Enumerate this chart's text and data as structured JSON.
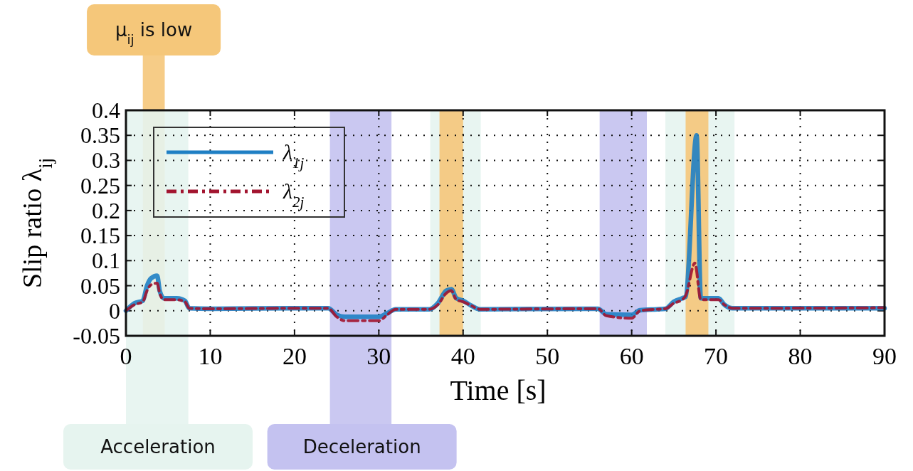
{
  "chart_data": {
    "type": "line",
    "xlabel": "Time [s]",
    "ylabel": "Slip ratio λ$_{ij}$",
    "xlim": [
      0,
      90
    ],
    "xticks": [
      0,
      10,
      20,
      30,
      40,
      50,
      60,
      70,
      80,
      90
    ],
    "ylim": [
      -0.05,
      0.4
    ],
    "yticks": [
      -0.05,
      0,
      0.05,
      0.1,
      0.15,
      0.2,
      0.25,
      0.3,
      0.35,
      0.4
    ],
    "grid": true,
    "legend": "top left",
    "series": [
      {
        "name": "λ$_{1j}$",
        "color": "#1f7fc4",
        "line_style": "solid",
        "x": [
          0,
          1,
          2,
          2.5,
          3,
          3.7,
          4,
          4.5,
          6,
          7,
          7.5,
          10,
          20,
          24,
          25,
          26,
          30,
          31,
          32,
          36,
          37,
          38,
          38.6,
          39.2,
          40,
          41,
          42,
          55,
          56,
          57,
          60,
          61,
          63,
          64,
          65,
          66,
          66.4,
          67.7,
          68.2,
          69,
          70.3,
          71,
          72,
          90
        ],
        "values": [
          0,
          0.015,
          0.02,
          0.05,
          0.065,
          0.07,
          0.04,
          0.025,
          0.025,
          0.02,
          0.005,
          0.004,
          0.005,
          0.005,
          -0.008,
          -0.012,
          -0.012,
          -0.005,
          0.003,
          0.003,
          0.015,
          0.04,
          0.043,
          0.025,
          0.02,
          0.01,
          0.003,
          0.004,
          0.004,
          -0.007,
          -0.008,
          0.001,
          0.003,
          0.004,
          0.018,
          0.025,
          0.028,
          0.35,
          0.025,
          0.025,
          0.025,
          0.012,
          0.005,
          0.005
        ]
      },
      {
        "name": "λ$_{2j}$",
        "color": "#a2142f",
        "line_style": "dashed",
        "x": [
          0,
          1,
          2,
          2.5,
          3,
          3.7,
          4,
          4.5,
          6,
          7,
          7.5,
          10,
          20,
          24,
          25,
          26,
          30,
          31,
          32,
          36,
          37,
          38,
          38.6,
          39.2,
          40,
          41,
          42,
          55,
          56,
          57,
          60,
          61,
          63,
          64,
          65,
          66,
          66.4,
          67.5,
          68.2,
          69,
          70.3,
          71,
          72,
          90
        ],
        "values": [
          0,
          0.012,
          0.018,
          0.04,
          0.052,
          0.055,
          0.035,
          0.022,
          0.022,
          0.018,
          0.005,
          0.004,
          0.005,
          0.005,
          -0.012,
          -0.02,
          -0.02,
          -0.008,
          0.003,
          0.003,
          0.012,
          0.035,
          0.04,
          0.022,
          0.018,
          0.01,
          0.003,
          0.004,
          0.004,
          -0.01,
          -0.015,
          0,
          0.003,
          0.004,
          0.015,
          0.022,
          0.03,
          0.095,
          0.022,
          0.022,
          0.022,
          0.012,
          0.005,
          0.006
        ]
      }
    ],
    "bands": [
      {
        "axis": "x",
        "from": 2,
        "to": 4.6,
        "color": "#f5c77a",
        "label": "μ$_{ij}$ is low"
      },
      {
        "axis": "x",
        "from": 0,
        "to": 7.4,
        "color": "#e6f4ef",
        "label": "Acceleration"
      },
      {
        "axis": "x",
        "from": 24.2,
        "to": 31.5,
        "color": "#c4c2f0",
        "label": "Deceleration"
      },
      {
        "axis": "x",
        "from": 36.1,
        "to": 42.1,
        "color": "#e6f4ef"
      },
      {
        "axis": "x",
        "from": 37.2,
        "to": 40,
        "color": "#f5c77a"
      },
      {
        "axis": "x",
        "from": 56.2,
        "to": 61.8,
        "color": "#c4c2f0"
      },
      {
        "axis": "x",
        "from": 64,
        "to": 72.2,
        "color": "#e6f4ef"
      },
      {
        "axis": "x",
        "from": 66.4,
        "to": 69.1,
        "color": "#f5c77a"
      }
    ]
  }
}
